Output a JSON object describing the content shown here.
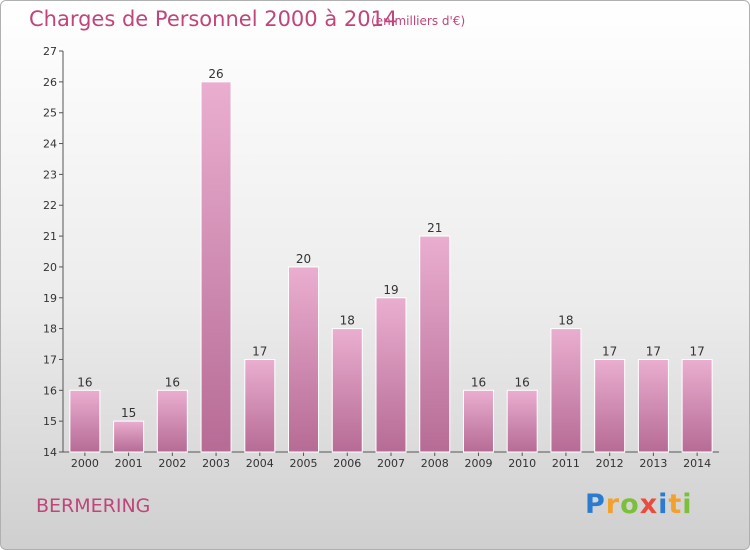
{
  "title": "Charges de Personnel 2000 à 2014",
  "subtitle": "(en milliers d'€)",
  "town": "BERMERING",
  "logo": {
    "p": "P",
    "r": "r",
    "o": "o",
    "x": "x",
    "i": "i",
    "t": "t",
    "i2": "i"
  },
  "colors": {
    "bar_light": "#eaaed0",
    "bar_dark": "#b66b95",
    "text": "#c0457a"
  },
  "chart_data": {
    "type": "bar",
    "categories": [
      "2000",
      "2001",
      "2002",
      "2003",
      "2004",
      "2005",
      "2006",
      "2007",
      "2008",
      "2009",
      "2010",
      "2011",
      "2012",
      "2013",
      "2014"
    ],
    "values": [
      16,
      15,
      16,
      26,
      17,
      20,
      18,
      19,
      21,
      16,
      16,
      18,
      17,
      17,
      17
    ],
    "ylim": [
      14,
      27
    ],
    "yticks": [
      14,
      15,
      16,
      17,
      18,
      19,
      20,
      21,
      22,
      23,
      24,
      25,
      26,
      27
    ],
    "grid": false,
    "legend": "none"
  }
}
